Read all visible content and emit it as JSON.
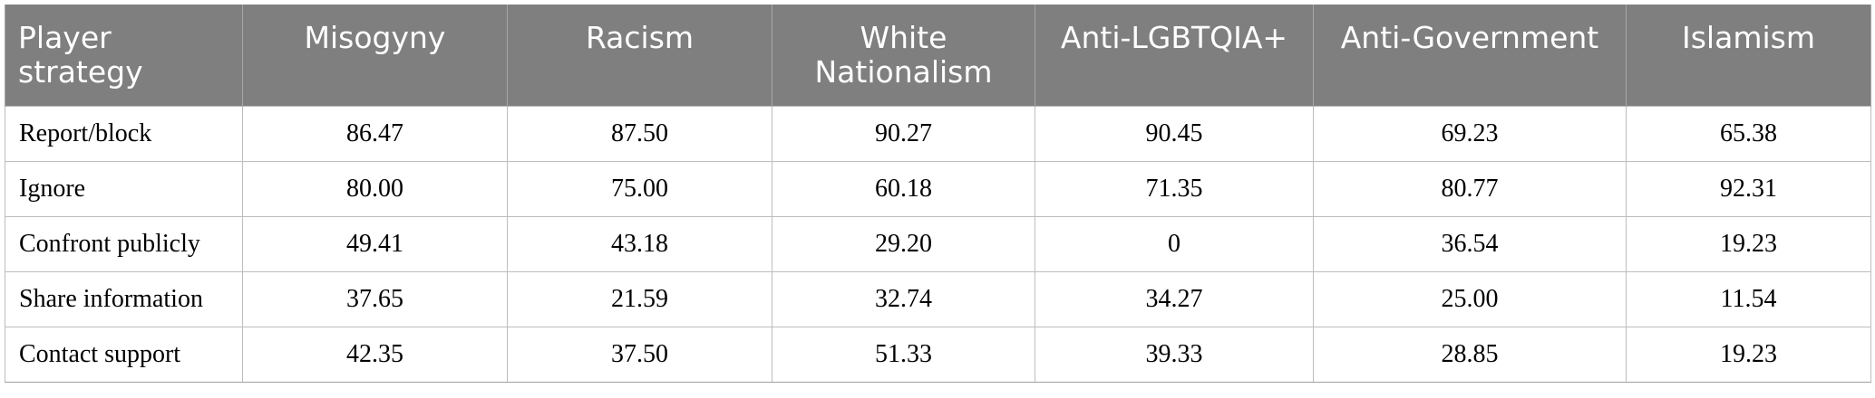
{
  "table": {
    "columns": [
      "Player strategy",
      "Misogyny",
      "Racism",
      "White Nationalism",
      "Anti-LGBTQIA+",
      "Anti-Government",
      "Islamism"
    ],
    "rows": [
      {
        "label": "Report/block",
        "values": [
          "86.47",
          "87.50",
          "90.27",
          "90.45",
          "69.23",
          "65.38"
        ]
      },
      {
        "label": "Ignore",
        "values": [
          "80.00",
          "75.00",
          "60.18",
          "71.35",
          "80.77",
          "92.31"
        ]
      },
      {
        "label": "Confront publicly",
        "values": [
          "49.41",
          "43.18",
          "29.20",
          "0",
          "36.54",
          "19.23"
        ]
      },
      {
        "label": "Share information",
        "values": [
          "37.65",
          "21.59",
          "32.74",
          "34.27",
          "25.00",
          "11.54"
        ]
      },
      {
        "label": "Contact support",
        "values": [
          "42.35",
          "37.50",
          "51.33",
          "39.33",
          "28.85",
          "19.23"
        ]
      }
    ]
  }
}
